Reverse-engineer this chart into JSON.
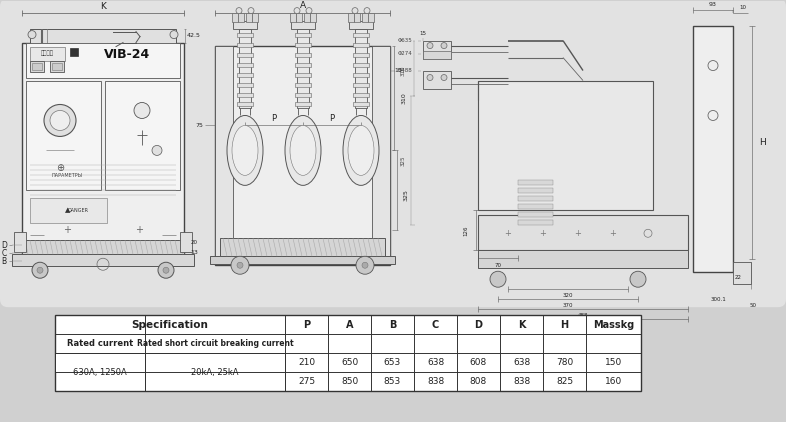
{
  "bg_color": "#d0d0d0",
  "diagram_bg": "#e2e2e2",
  "table_title": "Specification",
  "col_headers": [
    "P",
    "A",
    "B",
    "C",
    "D",
    "K",
    "H",
    "Masskg"
  ],
  "row_label_1a": "Rated current",
  "row_label_1b": "Rated short circuit breaking current",
  "row_label_2a": "630A, 1250A",
  "row_label_2b": "20kA, 25kA",
  "row1": [
    "210",
    "650",
    "653",
    "638",
    "608",
    "638",
    "780",
    "150"
  ],
  "row2": [
    "275",
    "850",
    "853",
    "838",
    "808",
    "838",
    "825",
    "160"
  ],
  "lc": "#555555",
  "lc2": "#333333"
}
